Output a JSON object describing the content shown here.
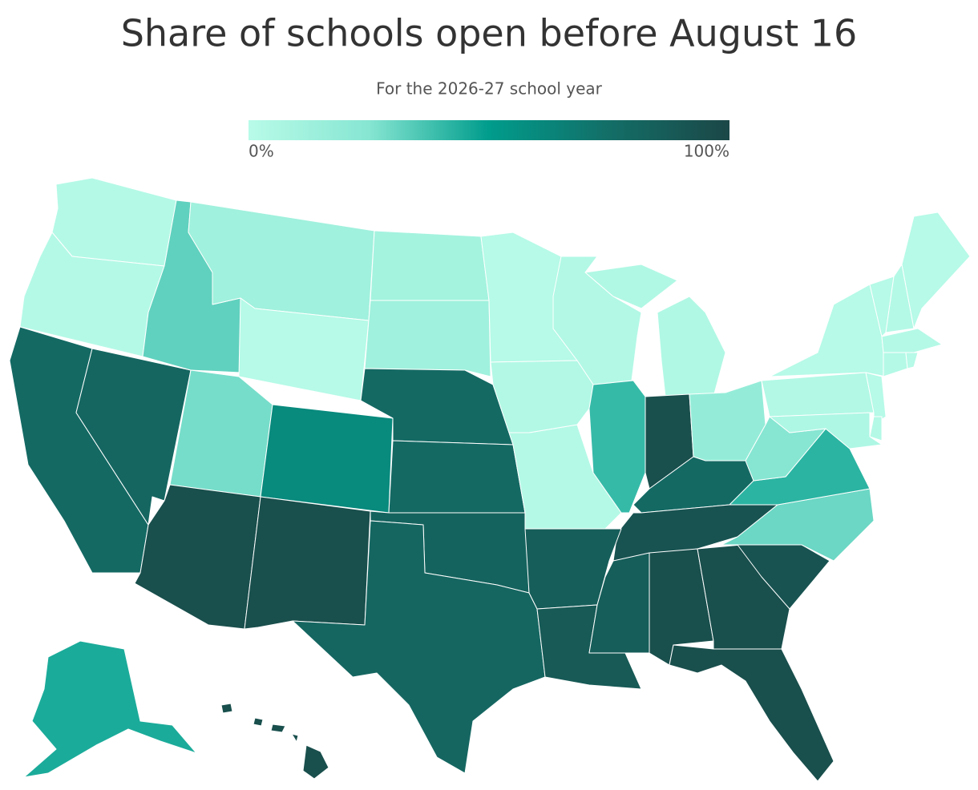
{
  "chart_data": {
    "type": "choropleth",
    "title": "Share of schools open before August 16",
    "subtitle": "For the 2026-27 school year",
    "clim": [
      0,
      100
    ],
    "colors": [
      "#b8fbe8",
      "#86e6d2",
      "#009c8c",
      "#136e67",
      "#1b4747"
    ],
    "cticks": [
      {
        "value": 0,
        "label": "0%"
      },
      {
        "value": 100,
        "label": "100%"
      }
    ],
    "values": [
      2,
      2,
      78,
      80,
      32,
      12,
      1,
      28,
      95,
      60,
      95,
      10,
      12,
      78,
      78,
      82,
      80,
      1,
      3,
      2,
      3,
      40,
      4,
      95,
      18,
      78,
      92,
      85,
      88,
      85,
      95,
      95,
      95,
      92,
      30,
      42,
      25,
      3,
      1,
      1,
      2,
      1,
      2,
      2,
      1,
      1,
      2,
      5,
      45,
      95
    ]
  }
}
